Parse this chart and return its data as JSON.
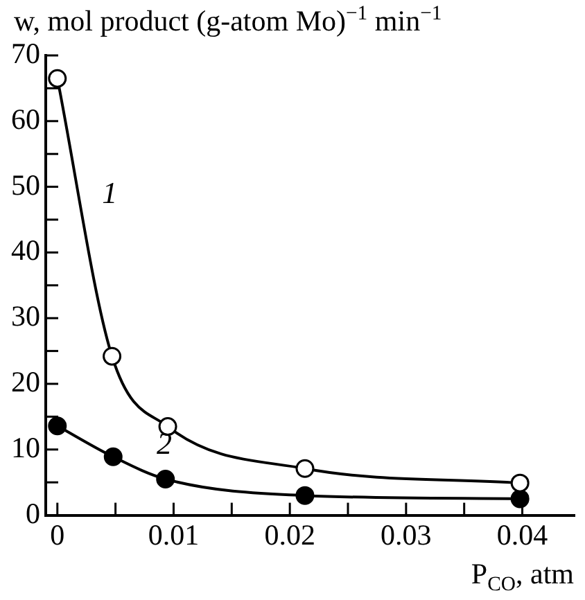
{
  "chart_data": {
    "type": "line",
    "title": "w, mol product (g-atom Mo)$^{−1}$ min$^{−1}$",
    "xlabel": "P$_{CO}$, atm",
    "series": [
      {
        "name": "1",
        "color": "#000000",
        "x": [
          0,
          0.0047,
          0.0095,
          0.0213,
          0.0398
        ],
        "values": [
          66.5,
          24.2,
          13.5,
          7.1,
          4.9
        ]
      },
      {
        "name": "2",
        "color": "#000000",
        "x": [
          0,
          0.0048,
          0.0093,
          0.0213,
          0.0398
        ],
        "values": [
          13.6,
          8.9,
          5.5,
          3.0,
          2.5
        ]
      }
    ],
    "xlim": [
      -0.001,
      0.0445
    ],
    "ylim": [
      0,
      70
    ],
    "xticks": [
      0,
      {
        "value": 0.005,
        "label": null
      },
      0.01,
      {
        "value": 0.015,
        "label": null
      },
      0.02,
      {
        "value": 0.025,
        "label": null
      },
      0.03,
      {
        "value": 0.035,
        "label": null
      },
      0.04
    ],
    "yticks": [
      0,
      {
        "value": 5,
        "label": null
      },
      10,
      {
        "value": 15,
        "label": null
      },
      20,
      {
        "value": 25,
        "label": null
      },
      30,
      {
        "value": 35,
        "label": null
      },
      40,
      {
        "value": 45,
        "label": null
      },
      50,
      {
        "value": 55,
        "label": null
      },
      60,
      {
        "value": 65,
        "label": null
      },
      70
    ],
    "grid": false,
    "legend": false,
    "marker": "circle",
    "line_style": "solid"
  }
}
